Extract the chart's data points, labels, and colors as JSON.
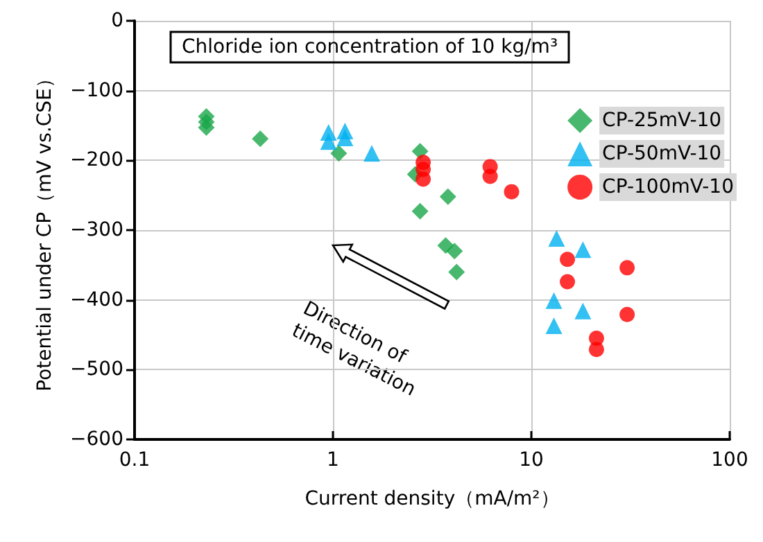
{
  "chart_data": {
    "type": "scatter",
    "title": "Chloride ion concentration of 10 kg/m³",
    "xlabel": "Current density（mA/m²）",
    "ylabel": "Potential under CP（mV vs.CSE）",
    "annotations": [
      "Direction of time variation"
    ],
    "log": "x",
    "xlim": [
      0.1,
      100
    ],
    "xticks": [
      0.1,
      1,
      10,
      100
    ],
    "ylim": [
      -600,
      0
    ],
    "yticks": [
      -600,
      -500,
      -400,
      -300,
      -200,
      -100,
      0
    ],
    "grid": true,
    "legend": "right",
    "series": [
      {
        "name": "CP-25mV-10",
        "color": "#1aa64a",
        "marker": "diamond",
        "x": [
          0.23,
          0.23,
          0.23,
          0.43,
          1.07,
          2.75,
          2.6,
          2.75,
          3.8,
          3.7,
          4.1,
          4.2
        ],
        "values": [
          -137,
          -145,
          -153,
          -169,
          -190,
          -187,
          -220,
          -273,
          -252,
          -322,
          -330,
          -360
        ]
      },
      {
        "name": "CP-50mV-10",
        "color": "#00b0f0",
        "marker": "triangle",
        "x": [
          0.95,
          0.95,
          1.15,
          1.15,
          1.57,
          13.4,
          18.2,
          13,
          18.2,
          13
        ],
        "values": [
          -160,
          -173,
          -158,
          -168,
          -190,
          -312,
          -328,
          -401,
          -416,
          -437
        ]
      },
      {
        "name": "CP-100mV-10",
        "color": "#ff0000",
        "marker": "circle",
        "x": [
          2.85,
          2.85,
          2.85,
          6.2,
          6.2,
          7.95,
          15.2,
          15.2,
          30.4,
          30.4,
          21.3,
          21.3
        ],
        "values": [
          -203,
          -213,
          -227,
          -209,
          -223,
          -245,
          -342,
          -374,
          -354,
          -421,
          -455,
          -471
        ]
      }
    ]
  }
}
